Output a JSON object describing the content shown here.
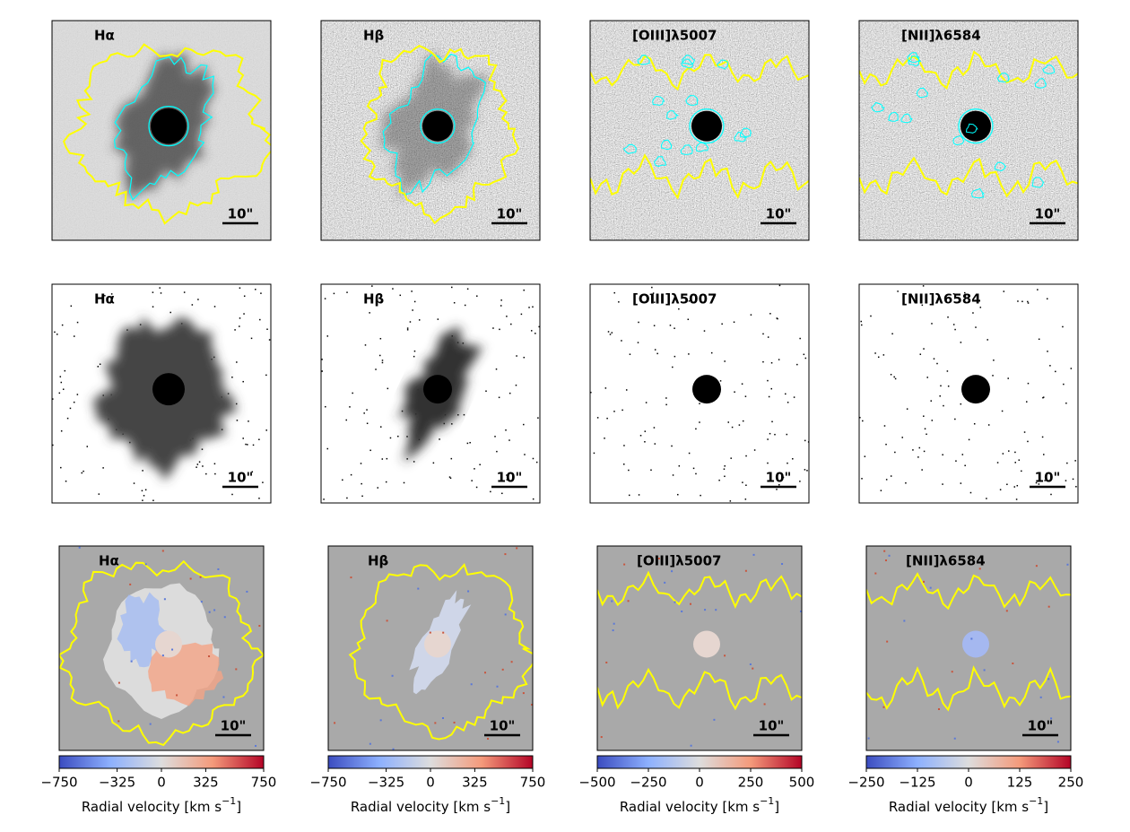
{
  "panels": [
    [
      {
        "label": "Hα",
        "scale": "10\""
      },
      {
        "label": "Hβ",
        "scale": "10\""
      },
      {
        "label": "[OIII]λ5007",
        "scale": "10\""
      },
      {
        "label": "[NII]λ6584",
        "scale": "10\""
      }
    ],
    [
      {
        "label": "Hα",
        "scale": "10\""
      },
      {
        "label": "Hβ",
        "scale": "10\""
      },
      {
        "label": "[OIII]λ5007",
        "scale": "10\""
      },
      {
        "label": "[NII]λ6584",
        "scale": "10\""
      }
    ],
    [
      {
        "label": "Hα",
        "scale": "10\""
      },
      {
        "label": "Hβ",
        "scale": "10\""
      },
      {
        "label": "[OIII]λ5007",
        "scale": "10\""
      },
      {
        "label": "[NII]λ6584",
        "scale": "10\""
      }
    ]
  ],
  "colorbars": [
    {
      "lim": [
        -750,
        750
      ],
      "ticks": [
        {
          "value": -750,
          "label": "−750"
        },
        {
          "value": -325,
          "label": "−325"
        },
        0,
        325,
        750
      ],
      "label": [
        "Radial velocity [km s",
        "−1",
        "]"
      ]
    },
    {
      "lim": [
        -750,
        750
      ],
      "ticks": [
        {
          "value": -750,
          "label": "−750"
        },
        {
          "value": -325,
          "label": "−325"
        },
        0,
        325,
        750
      ],
      "label": [
        "Radial velocity [km s",
        "−1",
        "]"
      ]
    },
    {
      "lim": [
        -500,
        500
      ],
      "ticks": [
        {
          "value": -500,
          "label": "−500"
        },
        {
          "value": -250,
          "label": "−250"
        },
        0,
        250,
        500
      ],
      "label": [
        "Radial velocity [km s",
        "−1",
        "]"
      ]
    },
    {
      "lim": [
        -250,
        250
      ],
      "ticks": [
        {
          "value": -250,
          "label": "−250"
        },
        {
          "value": -125,
          "label": "−125"
        },
        0,
        125,
        250
      ],
      "label": [
        "Radial velocity [km s",
        "−1",
        "]"
      ]
    }
  ]
}
